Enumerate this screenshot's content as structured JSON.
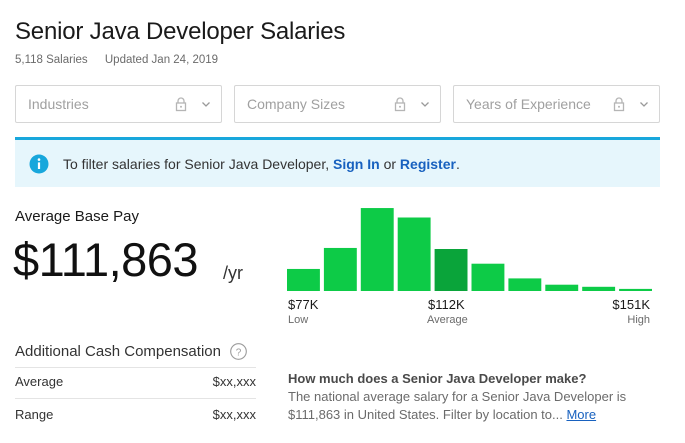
{
  "page": {
    "title": "Senior Java Developer Salaries",
    "salary_count": "5,118 Salaries",
    "updated": "Updated Jan 24, 2019"
  },
  "filters": [
    {
      "placeholder": "Industries",
      "icon": "lock-icon"
    },
    {
      "placeholder": "Company Sizes",
      "icon": "lock-icon"
    },
    {
      "placeholder": "Years of Experience",
      "icon": "lock-icon"
    }
  ],
  "banner": {
    "text_before": "To filter salaries for Senior Java Developer, ",
    "sign_in": "Sign In",
    "or": " or ",
    "register": "Register",
    "text_after": ".",
    "accent": "#18a7dc"
  },
  "pay": {
    "label": "Average Base Pay",
    "value": "$111,863",
    "unit": "/yr"
  },
  "chart_data": {
    "type": "bar",
    "values": [
      21,
      41,
      79,
      70,
      40,
      26,
      12,
      6,
      4,
      2
    ],
    "highlight_index": 4,
    "ylim": [
      0,
      80
    ],
    "colors": {
      "bar": "#0dcb47",
      "highlight": "#0aa43a"
    },
    "axis": {
      "low_value": "$77K",
      "low_label": "Low",
      "mid_value": "$112K",
      "mid_label": "Average",
      "high_value": "$151K",
      "high_label": "High"
    }
  },
  "additional": {
    "title": "Additional Cash Compensation",
    "rows": [
      {
        "label": "Average",
        "value": "$xx,xxx"
      },
      {
        "label": "Range",
        "value": "$xx,xxx"
      }
    ]
  },
  "faq": {
    "question": "How much does a Senior Java Developer make?",
    "answer": "The national average salary for a Senior Java Developer is $111,863 in United States. Filter by location to",
    "ellipsis": "... ",
    "more": "More"
  }
}
